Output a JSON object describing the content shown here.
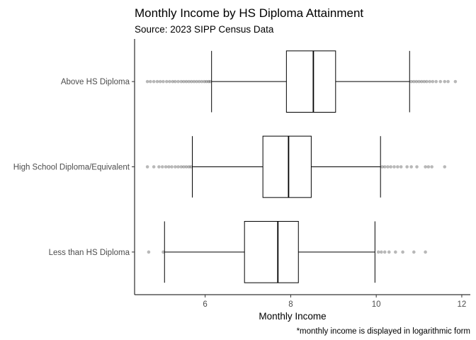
{
  "chart_data": {
    "type": "boxplot",
    "title": "Monthly Income by HS Diploma Attainment",
    "subtitle": "Source: 2023 SIPP Census Data",
    "xlabel": "Monthly Income",
    "ylabel": "",
    "caption": "*monthly income is displayed in logarithmic form",
    "xlim": [
      4.35,
      12.2
    ],
    "xticks": [
      6,
      8,
      10,
      12
    ],
    "grid": false,
    "categories": [
      "Above HS Diploma",
      "High School Diploma/Equivalent",
      "Less than HS Diploma"
    ],
    "boxes": [
      {
        "category": "Above HS Diploma",
        "whisker_low": 6.15,
        "q1": 7.9,
        "median": 8.53,
        "q3": 9.05,
        "whisker_high": 10.78,
        "outliers_low": [
          4.65,
          4.72,
          4.8,
          4.88,
          4.95,
          5.02,
          5.1,
          5.17,
          5.24,
          5.3,
          5.37,
          5.44,
          5.5,
          5.56,
          5.62,
          5.68,
          5.74,
          5.8,
          5.86,
          5.92,
          5.98,
          6.03,
          6.08,
          6.12
        ],
        "outliers_high": [
          10.82,
          10.88,
          10.94,
          11.0,
          11.06,
          11.12,
          11.18,
          11.25,
          11.32,
          11.4,
          11.5,
          11.6,
          11.68,
          11.85
        ]
      },
      {
        "category": "High School Diploma/Equivalent",
        "whisker_low": 5.7,
        "q1": 7.35,
        "median": 7.95,
        "q3": 8.48,
        "whisker_high": 10.1,
        "outliers_low": [
          4.65,
          4.8,
          4.92,
          5.0,
          5.08,
          5.15,
          5.22,
          5.3,
          5.37,
          5.44,
          5.5,
          5.56,
          5.62,
          5.67
        ],
        "outliers_high": [
          10.14,
          10.2,
          10.27,
          10.34,
          10.42,
          10.5,
          10.58,
          10.72,
          10.82,
          10.95,
          11.15,
          11.22,
          11.3,
          11.6
        ]
      },
      {
        "category": "Less than HS Diploma",
        "whisker_low": 5.05,
        "q1": 6.92,
        "median": 7.7,
        "q3": 8.18,
        "whisker_high": 9.97,
        "outliers_low": [
          4.68,
          5.02
        ],
        "outliers_high": [
          10.05,
          10.12,
          10.2,
          10.3,
          10.45,
          10.62,
          10.88,
          11.15
        ]
      }
    ]
  }
}
